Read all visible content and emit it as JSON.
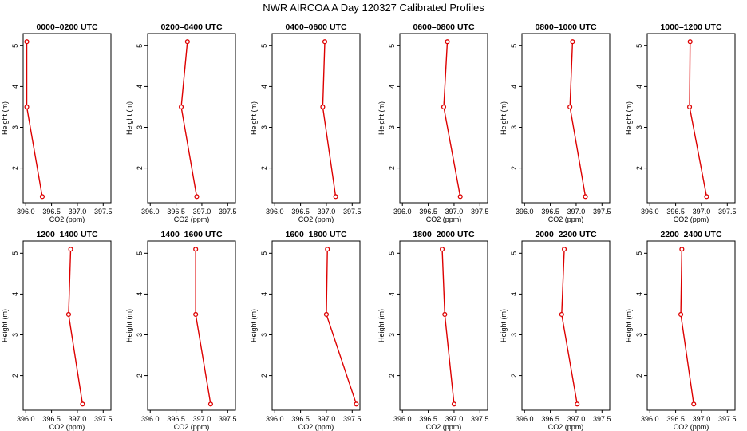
{
  "figure": {
    "title": "NWR AIRCOA A  Day 120327  Calibrated Profiles"
  },
  "chart_data": {
    "type": "line",
    "xlabel": "CO2 (ppm)",
    "ylabel": "Height (m)",
    "xlim": [
      395.95,
      397.65
    ],
    "ylim": [
      1.15,
      5.3
    ],
    "x_ticks": [
      "396.0",
      "396.5",
      "397.0",
      "397.5"
    ],
    "y_ticks": [
      "2",
      "3",
      "4",
      "5"
    ],
    "line_color": "#dd0000",
    "heights": [
      5.1,
      3.5,
      1.3
    ],
    "panels": [
      {
        "title": "0000–0200 UTC",
        "co2": [
          396.02,
          396.02,
          396.32
        ]
      },
      {
        "title": "0200–0400 UTC",
        "co2": [
          396.72,
          396.6,
          396.9
        ]
      },
      {
        "title": "0400–0600 UTC",
        "co2": [
          396.97,
          396.93,
          397.18
        ]
      },
      {
        "title": "0600–0800 UTC",
        "co2": [
          396.87,
          396.8,
          397.12
        ]
      },
      {
        "title": "0800–1000 UTC",
        "co2": [
          396.93,
          396.88,
          397.18
        ]
      },
      {
        "title": "1000–1200 UTC",
        "co2": [
          396.78,
          396.77,
          397.1
        ]
      },
      {
        "title": "1200–1400 UTC",
        "co2": [
          396.87,
          396.83,
          397.1
        ]
      },
      {
        "title": "1400–1600 UTC",
        "co2": [
          396.88,
          396.88,
          397.17
        ]
      },
      {
        "title": "1600–1800 UTC",
        "co2": [
          397.02,
          397.0,
          397.58
        ]
      },
      {
        "title": "1800–2000 UTC",
        "co2": [
          396.77,
          396.82,
          397.0
        ]
      },
      {
        "title": "2000–2200 UTC",
        "co2": [
          396.77,
          396.72,
          397.02
        ]
      },
      {
        "title": "2200–2400 UTC",
        "co2": [
          396.62,
          396.6,
          396.85
        ]
      }
    ]
  }
}
